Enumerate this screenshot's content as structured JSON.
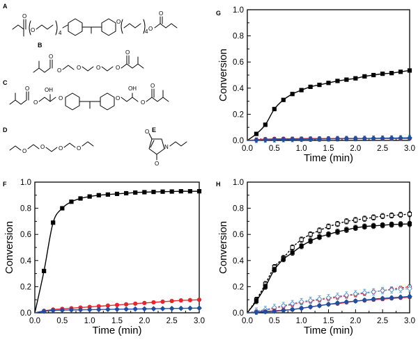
{
  "panel_labels": {
    "A": "A",
    "B": "B",
    "C": "C",
    "D": "D",
    "E": "E",
    "F": "F",
    "G": "G",
    "H": "H"
  },
  "structure_text": {
    "repeat": "4",
    "oh": "OH",
    "o": "O",
    "n": "N"
  },
  "colors": {
    "black": "#000000",
    "red": "#e8252b",
    "blue": "#1f4fa3",
    "light_blue": "#5b9bd5"
  },
  "chart_data": [
    {
      "id": "G",
      "type": "line",
      "xlabel": "Time (min)",
      "ylabel": "Conversion",
      "xlim": [
        0.0,
        3.0
      ],
      "ylim": [
        0.0,
        1.0
      ],
      "xticks": [
        "0.0",
        "0.5",
        "1.0",
        "1.5",
        "2.0",
        "2.5",
        "3.0"
      ],
      "yticks": [
        "0.0",
        "0.2",
        "0.4",
        "0.6",
        "0.8",
        "1.0"
      ],
      "x": [
        0,
        0.167,
        0.333,
        0.5,
        0.667,
        0.833,
        1.0,
        1.167,
        1.333,
        1.5,
        1.667,
        1.833,
        2.0,
        2.167,
        2.333,
        2.5,
        2.667,
        2.833,
        3.0
      ],
      "series": [
        {
          "color": "#000000",
          "marker": "square",
          "values": [
            0.0,
            0.05,
            0.12,
            0.24,
            0.31,
            0.355,
            0.385,
            0.41,
            0.425,
            0.44,
            0.455,
            0.465,
            0.475,
            0.49,
            0.5,
            0.51,
            0.515,
            0.525,
            0.535
          ]
        },
        {
          "color": "#e8252b",
          "marker": "circle",
          "values": [
            0.0,
            0.005,
            0.01,
            0.012,
            0.013,
            0.013,
            0.014,
            0.014,
            0.014,
            0.014,
            0.015,
            0.015,
            0.015,
            0.015,
            0.015,
            0.015,
            0.015,
            0.015,
            0.015
          ],
          "error": 0.008
        },
        {
          "color": "#1f4fa3",
          "marker": "diamond",
          "values": [
            0.0,
            0.002,
            0.004,
            0.006,
            0.007,
            0.008,
            0.009,
            0.01,
            0.011,
            0.012,
            0.013,
            0.014,
            0.014,
            0.015,
            0.016,
            0.017,
            0.018,
            0.019,
            0.02
          ],
          "error": 0.018
        }
      ]
    },
    {
      "id": "F",
      "type": "line",
      "xlabel": "Time (min)",
      "ylabel": "Conversion",
      "xlim": [
        0.0,
        3.0
      ],
      "ylim": [
        0.0,
        1.0
      ],
      "xticks": [
        "0.0",
        "0.5",
        "1.0",
        "1.5",
        "2.0",
        "2.5",
        "3.0"
      ],
      "yticks": [
        "0.0",
        "0.2",
        "0.4",
        "0.6",
        "0.8",
        "1.0"
      ],
      "x": [
        0,
        0.167,
        0.333,
        0.5,
        0.667,
        0.833,
        1.0,
        1.167,
        1.333,
        1.5,
        1.667,
        1.833,
        2.0,
        2.167,
        2.333,
        2.5,
        2.667,
        2.833,
        3.0
      ],
      "series": [
        {
          "color": "#000000",
          "marker": "square",
          "values": [
            0.0,
            0.32,
            0.69,
            0.8,
            0.85,
            0.875,
            0.89,
            0.9,
            0.905,
            0.91,
            0.915,
            0.92,
            0.923,
            0.925,
            0.927,
            0.928,
            0.93,
            0.93,
            0.93
          ]
        },
        {
          "color": "#e8252b",
          "marker": "circle",
          "values": [
            0.0,
            0.015,
            0.025,
            0.03,
            0.035,
            0.04,
            0.045,
            0.05,
            0.055,
            0.06,
            0.065,
            0.07,
            0.075,
            0.08,
            0.085,
            0.09,
            0.095,
            0.097,
            0.1
          ],
          "error": 0.01
        },
        {
          "color": "#1f4fa3",
          "marker": "diamond",
          "values": [
            0.0,
            0.012,
            0.018,
            0.02,
            0.022,
            0.023,
            0.024,
            0.025,
            0.026,
            0.027,
            0.028,
            0.029,
            0.03,
            0.031,
            0.032,
            0.033,
            0.034,
            0.035,
            0.036
          ],
          "error": 0.006
        }
      ]
    },
    {
      "id": "H",
      "type": "line",
      "xlabel": "Time (min)",
      "ylabel": "Conversion",
      "xlim": [
        0.0,
        3.0
      ],
      "ylim": [
        0.0,
        1.0
      ],
      "xticks": [
        "0.0",
        "0.5",
        "1.0",
        "1.5",
        "2.0",
        "2.5",
        "3.0"
      ],
      "yticks": [
        "0.0",
        "0.2",
        "0.4",
        "0.6",
        "0.8",
        "1.0"
      ],
      "x": [
        0,
        0.167,
        0.333,
        0.5,
        0.667,
        0.833,
        1.0,
        1.167,
        1.333,
        1.5,
        1.667,
        1.833,
        2.0,
        2.167,
        2.333,
        2.5,
        2.667,
        2.833,
        3.0
      ],
      "series": [
        {
          "color": "#000000",
          "marker": "open-square",
          "dashed": true,
          "values": [
            0.0,
            0.1,
            0.22,
            0.35,
            0.42,
            0.5,
            0.56,
            0.6,
            0.63,
            0.66,
            0.68,
            0.7,
            0.71,
            0.72,
            0.73,
            0.74,
            0.745,
            0.75,
            0.755
          ],
          "error": 0.02
        },
        {
          "color": "#000000",
          "marker": "square",
          "values": [
            0.0,
            0.09,
            0.2,
            0.33,
            0.41,
            0.46,
            0.51,
            0.55,
            0.58,
            0.6,
            0.62,
            0.635,
            0.65,
            0.66,
            0.665,
            0.67,
            0.675,
            0.678,
            0.68
          ],
          "error": 0.02
        },
        {
          "color": "#e8252b",
          "marker": "open-circle",
          "dashed": true,
          "values": [
            0.0,
            0.01,
            0.02,
            0.035,
            0.05,
            0.065,
            0.08,
            0.09,
            0.1,
            0.11,
            0.12,
            0.13,
            0.14,
            0.15,
            0.16,
            0.17,
            0.18,
            0.19,
            0.2
          ],
          "error": 0.015
        },
        {
          "color": "#5b9bd5",
          "marker": "open-diamond",
          "dashed": true,
          "values": [
            0.0,
            0.012,
            0.025,
            0.04,
            0.055,
            0.07,
            0.085,
            0.095,
            0.105,
            0.115,
            0.125,
            0.135,
            0.145,
            0.155,
            0.16,
            0.17,
            0.175,
            0.18,
            0.185
          ],
          "error": 0.025
        },
        {
          "color": "#e8252b",
          "marker": "circle",
          "values": [
            0.0,
            0.005,
            0.01,
            0.015,
            0.02,
            0.025,
            0.035,
            0.045,
            0.055,
            0.065,
            0.07,
            0.08,
            0.09,
            0.095,
            0.1,
            0.105,
            0.11,
            0.115,
            0.12
          ],
          "error": 0.012
        },
        {
          "color": "#1f4fa3",
          "marker": "diamond",
          "values": [
            0.0,
            0.004,
            0.008,
            0.012,
            0.018,
            0.025,
            0.035,
            0.045,
            0.055,
            0.065,
            0.075,
            0.083,
            0.09,
            0.097,
            0.105,
            0.11,
            0.115,
            0.12,
            0.125
          ],
          "error": 0.012
        }
      ]
    }
  ]
}
